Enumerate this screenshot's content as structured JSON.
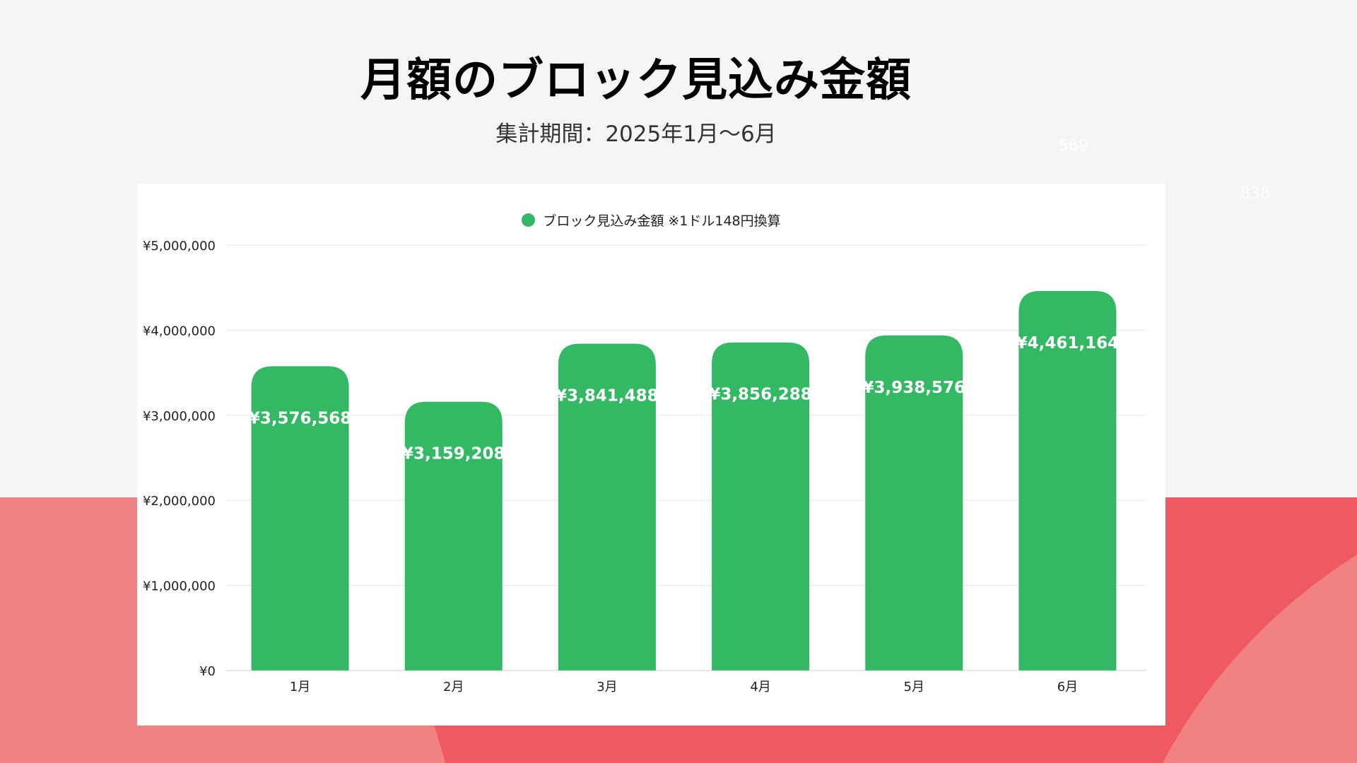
{
  "title": "月額のブロック見込み金額",
  "subtitle": "集計期間：2025年1月〜6月",
  "bg_numbers": [
    "569",
    "838"
  ],
  "colors": {
    "bar": "#33b864",
    "background": "#f5f5f5",
    "band_light": "#f28182",
    "band_dark": "#ef5a61",
    "card": "#ffffff"
  },
  "chart_data": {
    "type": "bar",
    "categories": [
      "1月",
      "2月",
      "3月",
      "4月",
      "5月",
      "6月"
    ],
    "series": [
      {
        "name": "ブロック見込み金額 ※1ドル148円換算",
        "values": [
          3576568,
          3159208,
          3841488,
          3856288,
          3938576,
          4461164
        ]
      }
    ],
    "data_labels": [
      "¥3,576,568",
      "¥3,159,208",
      "¥3,841,488",
      "¥3,856,288",
      "¥3,938,576",
      "¥4,461,164"
    ],
    "yticks": [
      {
        "value": 0,
        "label": "¥0"
      },
      {
        "value": 1000000,
        "label": "¥1,000,000"
      },
      {
        "value": 2000000,
        "label": "¥2,000,000"
      },
      {
        "value": 3000000,
        "label": "¥3,000,000"
      },
      {
        "value": 4000000,
        "label": "¥4,000,000"
      },
      {
        "value": 5000000,
        "label": "¥5,000,000"
      }
    ],
    "ylim": [
      0,
      5000000
    ],
    "grid": true,
    "legend_position": "top-center"
  }
}
